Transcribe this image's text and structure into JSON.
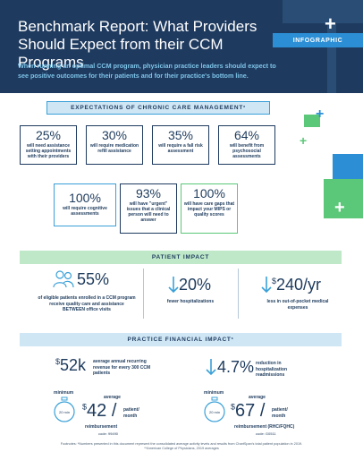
{
  "header": {
    "title": "Benchmark Report: What Providers Should Expect from their CCM Programs",
    "badge": "INFOGRAPHIC",
    "subtitle": "When running an optimal CCM program, physician practice leaders should expect to see positive outcomes for their patients and for their practice's bottom line."
  },
  "expectations": {
    "heading": "EXPECTATIONS OF CHRONIC CARE MANAGEMENT",
    "heading_mark": "*",
    "items": [
      {
        "value": "25%",
        "label": "will need assistance setting appointments with their providers"
      },
      {
        "value": "30%",
        "label": "will require medication refill assistance"
      },
      {
        "value": "35%",
        "label": "will require a fall risk assessment"
      },
      {
        "value": "64%",
        "label": "will benefit from psychosocial assessments"
      },
      {
        "value": "100%",
        "label": "will require cognitive assessments"
      },
      {
        "value": "93%",
        "label": "will have \"urgent\" issues that a clinical person will need to answer"
      },
      {
        "value": "100%",
        "label": "will have care gaps that impact your MIPS or quality scores"
      }
    ]
  },
  "patient_impact": {
    "heading": "PATIENT IMPACT",
    "items": [
      {
        "value": "55%",
        "label": "of eligible patients enrolled in a CCM program receive quality care and assistance BETWEEN office visits"
      },
      {
        "value": "20%",
        "label": "fewer hospitalizations"
      },
      {
        "currency": "$",
        "value": "240/yr",
        "label": "less in out-of-pocket medical expenses"
      }
    ]
  },
  "financial_impact": {
    "heading": "PRACTICE FINANCIAL IMPACT",
    "heading_mark": "*",
    "revenue": {
      "currency": "$",
      "value": "52k",
      "label": "average annual recurring revenue for every 300 CCM patients"
    },
    "readmission": {
      "value": "4.7%",
      "label": "reduction in hospitalization readmissions"
    },
    "reimb_left": {
      "minimum": "minimum",
      "minutes": "20 min",
      "average": "average",
      "currency": "$",
      "value": "42",
      "unit": "patient/ month",
      "label": "reimbursement",
      "code": "code: 99490"
    },
    "reimb_right": {
      "minimum": "minimum",
      "minutes": "20 min",
      "average": "average",
      "currency": "$",
      "value": "67",
      "unit": "patient/ month",
      "label": "reimbursement (RHC/FQHC)",
      "code": "code: G0511"
    }
  },
  "footnote": {
    "line1": "Footnotes: *Numbers presented in this document represent the consolidated average activity levels and results from ChartSpan's total patient population in 2019.",
    "line2": "**American College of Physicians, 2019 averages"
  },
  "colors": {
    "navy": "#1e3a5f",
    "blue": "#2c8fd6",
    "light_blue": "#cfe6f5",
    "green": "#5ac878",
    "light_green": "#bfe8c9"
  }
}
